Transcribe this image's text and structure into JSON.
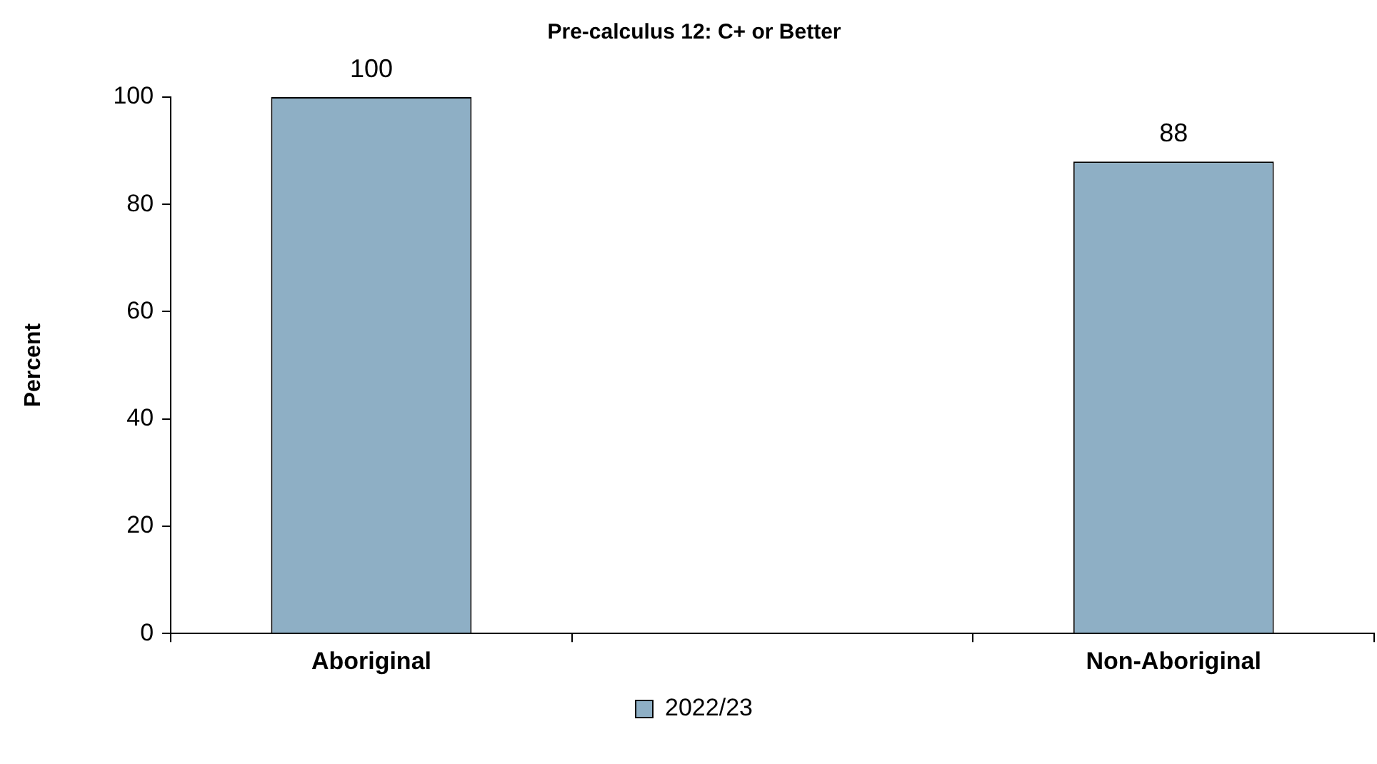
{
  "chart_data": {
    "type": "bar",
    "title": "Pre-calculus 12: C+ or Better",
    "ylabel": "Percent",
    "categories": [
      "Aboriginal",
      null,
      "Non-Aboriginal"
    ],
    "series": [
      {
        "name": "2022/23",
        "color": "#8eafc5",
        "values": [
          100,
          null,
          88
        ]
      }
    ],
    "ylim": [
      0,
      100
    ],
    "yticks": [
      0,
      20,
      40,
      60,
      80,
      100
    ],
    "grid": false,
    "legend": "bottom",
    "data_labels": true
  }
}
